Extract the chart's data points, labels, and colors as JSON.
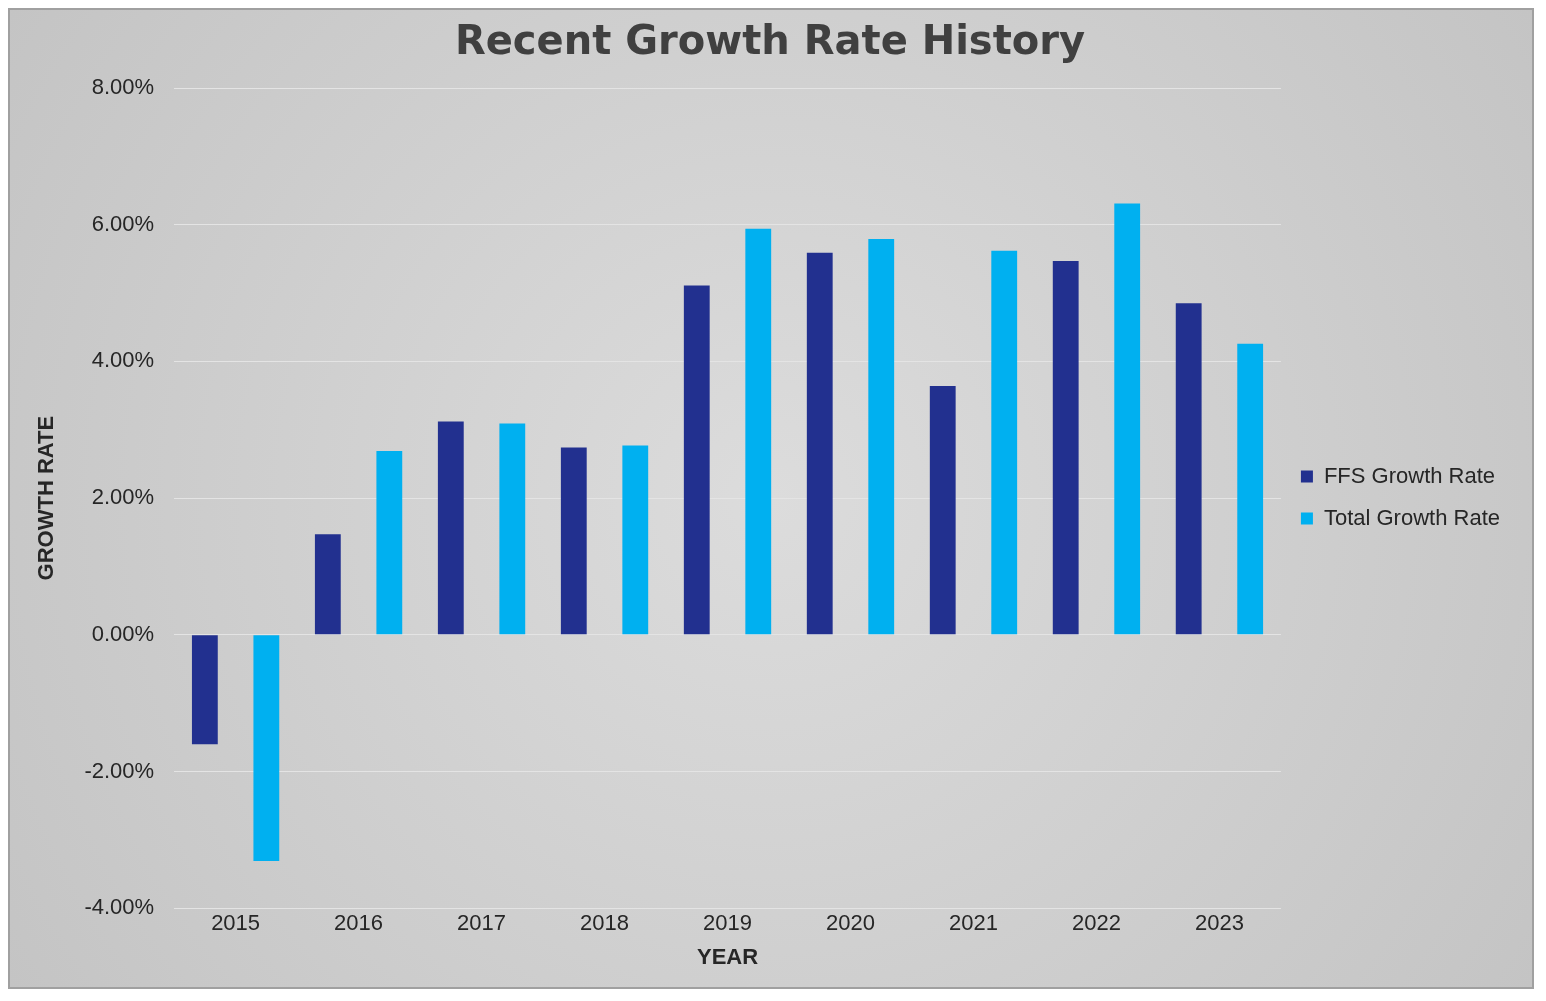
{
  "chart_data": {
    "type": "bar",
    "title": "Recent Growth Rate History",
    "xlabel": "YEAR",
    "ylabel": "GROWTH RATE",
    "categories": [
      "2015",
      "2016",
      "2017",
      "2018",
      "2019",
      "2020",
      "2021",
      "2022",
      "2023"
    ],
    "series": [
      {
        "name": "FFS Growth Rate",
        "color": "#22308f",
        "values": [
          -1.6,
          1.47,
          3.12,
          2.74,
          5.11,
          5.59,
          3.64,
          5.47,
          4.85
        ]
      },
      {
        "name": "Total Growth Rate",
        "color": "#00b0f0",
        "values": [
          -3.31,
          2.69,
          3.09,
          2.77,
          5.94,
          5.79,
          5.62,
          6.31,
          4.26
        ]
      }
    ],
    "ylim": [
      -4,
      8
    ],
    "yticks": [
      {
        "value": -4,
        "label": "-4.00%"
      },
      {
        "value": -2,
        "label": "-2.00%"
      },
      {
        "value": 0,
        "label": "0.00%"
      },
      {
        "value": 2,
        "label": "2.00%"
      },
      {
        "value": 4,
        "label": "4.00%"
      },
      {
        "value": 6,
        "label": "6.00%"
      },
      {
        "value": 8,
        "label": "8.00%"
      }
    ],
    "grid": "y",
    "legend": "right"
  }
}
